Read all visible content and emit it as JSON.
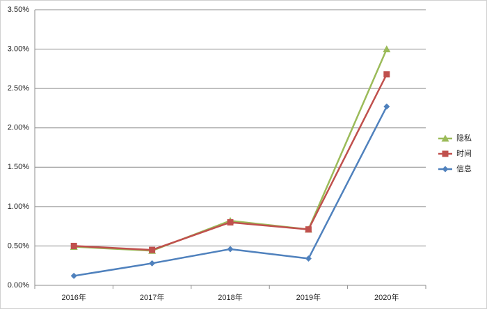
{
  "chart_data": {
    "type": "line",
    "categories": [
      "2016年",
      "2017年",
      "2018年",
      "2019年",
      "2020年"
    ],
    "series": [
      {
        "name": "隐私",
        "color": "#9bbb59",
        "marker": "triangle",
        "values": [
          0.49,
          0.44,
          0.82,
          0.71,
          3.0
        ]
      },
      {
        "name": "时间",
        "color": "#c0504d",
        "marker": "square",
        "values": [
          0.5,
          0.45,
          0.8,
          0.71,
          2.68
        ]
      },
      {
        "name": "信息",
        "color": "#4f81bd",
        "marker": "diamond",
        "values": [
          0.12,
          0.28,
          0.46,
          0.34,
          2.27
        ]
      }
    ],
    "ylim": [
      0,
      3.5
    ],
    "yticks": [
      {
        "value": 0,
        "label": "0.00%"
      },
      {
        "value": 0.5,
        "label": "0.50%"
      },
      {
        "value": 1,
        "label": "1.00%"
      },
      {
        "value": 1.5,
        "label": "1.50%"
      },
      {
        "value": 2,
        "label": "2.00%"
      },
      {
        "value": 2.5,
        "label": "2.50%"
      },
      {
        "value": 3,
        "label": "3.00%"
      },
      {
        "value": 3.5,
        "label": "3.50%"
      }
    ],
    "grid": true,
    "legend": "right"
  }
}
